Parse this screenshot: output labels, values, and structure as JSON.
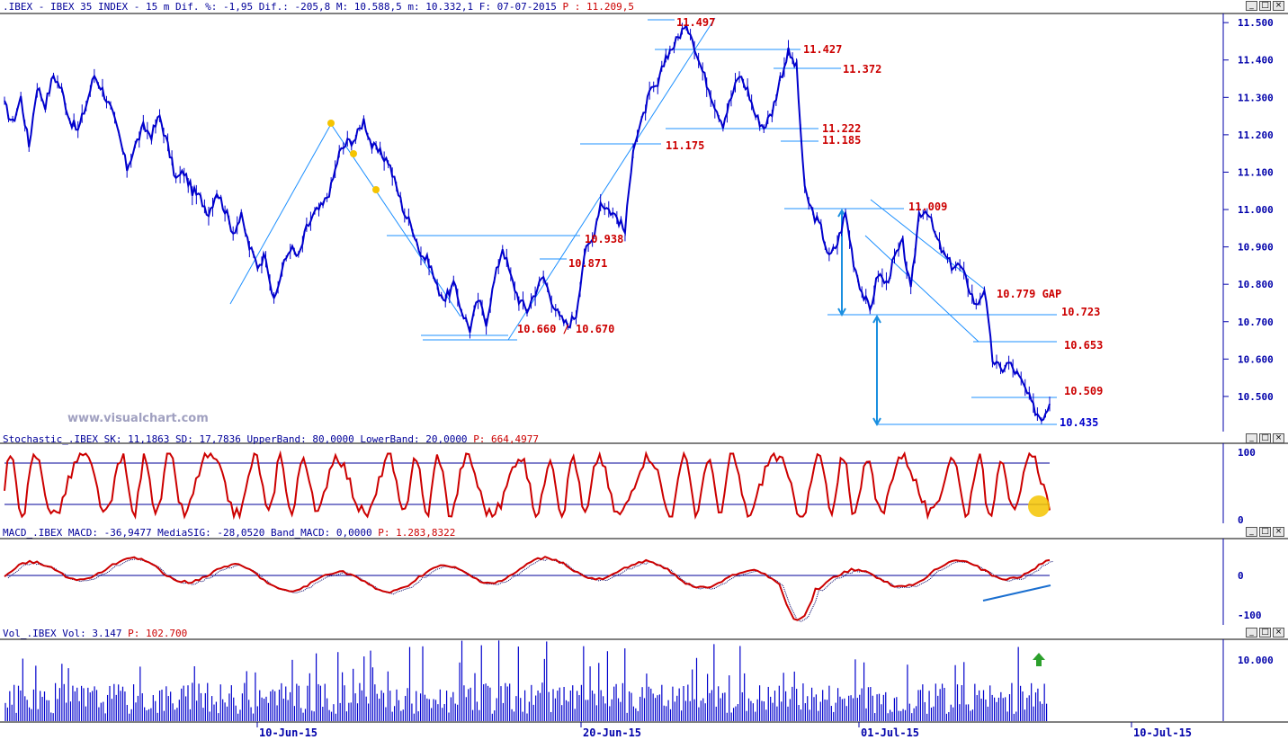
{
  "colors": {
    "price": "#0000cc",
    "trend": "#1e90ff",
    "label_red": "#cc0000",
    "stoch": "#cc0000",
    "macd": "#cc0000",
    "volume": "#0000cc",
    "axis": "#0000aa",
    "marker": "#f5c400",
    "arrow_green": "#2ca02c"
  },
  "window_buttons": [
    "_",
    "□",
    "×"
  ],
  "header": {
    "price": ".IBEX - IBEX 35 INDEX -  15 m Dif. %: -1,95 Dif.: -205,8 M: 10.588,5 m: 10.332,1 F: 07-07-2015",
    "price_p": "P : 11.209,5",
    "stoch": "Stochastic_.IBEX SK: 11,1863 SD: 17,7836 UpperBand: 80,0000 LowerBand: 20,0000",
    "stoch_p": "P: 664,4977",
    "macd": "MACD_.IBEX MACD: -36,9477 MediaSIG: -28,0520 Band_MACD: 0,0000",
    "macd_p": "P: 1.283,8322",
    "vol": "Vol_.IBEX Vol: 3.147",
    "vol_p": "P: 102.700"
  },
  "watermark": "www.visualchart.com",
  "chart_data": [
    {
      "type": "line",
      "title": ".IBEX - IBEX 35 INDEX - 15 m",
      "x_ticks": [
        "10-Jun-15",
        "20-Jun-15",
        "01-Jul-15",
        "10-Jul-15"
      ],
      "y_ticks": [
        "11.500",
        "11.400",
        "11.300",
        "11.200",
        "11.100",
        "11.000",
        "10.900",
        "10.800",
        "10.700",
        "10.600",
        "10.500"
      ],
      "ylim": [
        10430,
        11510
      ],
      "series": [
        {
          "values": [
            11280,
            11230,
            11300,
            11170,
            11330,
            11280,
            11360,
            11320,
            11240,
            11210,
            11280,
            11360,
            11320,
            11270,
            11200,
            11110,
            11170,
            11220,
            11200,
            11250,
            11170,
            11080,
            11100,
            11050,
            11030,
            10990,
            11050,
            11000,
            10940,
            10980,
            10900,
            10850,
            10880,
            10750,
            10840,
            10900,
            10870,
            10950,
            10990,
            11010,
            11060,
            11150,
            11180,
            11190,
            11240,
            11170,
            11150,
            11130,
            11060,
            10990,
            10950,
            10880,
            10860,
            10790,
            10760,
            10800,
            10730,
            10680,
            10760,
            10700,
            10810,
            10900,
            10820,
            10760,
            10730,
            10780,
            10820,
            10760,
            10710,
            10690,
            10720,
            10880,
            10920,
            11020,
            11000,
            10980,
            10940,
            11170,
            11230,
            11310,
            11330,
            11410,
            11440,
            11480,
            11480,
            11400,
            11340,
            11280,
            11230,
            11300,
            11360,
            11320,
            11250,
            11220,
            11260,
            11350,
            11420,
            11380,
            11050,
            10990,
            10950,
            10870,
            10910,
            10990,
            10860,
            10780,
            10730,
            10830,
            10800,
            10870,
            10910,
            10780,
            10990,
            11000,
            10930,
            10880,
            10850,
            10850,
            10800,
            10740,
            10790,
            10600,
            10570,
            10590,
            10560,
            10520,
            10470,
            10440,
            10480
          ]
        }
      ],
      "annotations": [
        "11.497",
        "11.427",
        "11.372",
        "11.222",
        "11.175",
        "11.185",
        "11.009",
        "10.938",
        "10.871",
        "10.779 GAP",
        "10.723",
        "10.660 / 10.670",
        "10.653",
        "10.509",
        "10.435"
      ]
    },
    {
      "type": "line",
      "title": "Stochastic_.IBEX",
      "y_ticks": [
        "100",
        "0"
      ],
      "ylim": [
        0,
        100
      ],
      "bands": [
        20,
        80
      ]
    },
    {
      "type": "line",
      "title": "MACD_.IBEX",
      "y_ticks": [
        "0",
        "-100"
      ],
      "ylim": [
        -120,
        100
      ]
    },
    {
      "type": "bar",
      "title": "Vol_.IBEX",
      "y_ticks": [
        "10.000"
      ]
    }
  ]
}
